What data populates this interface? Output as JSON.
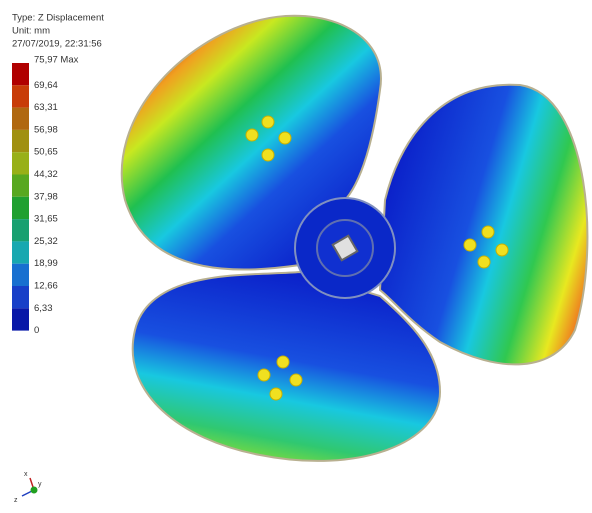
{
  "header": {
    "type": "Type: Z Displacement",
    "unit": "Unit: mm",
    "timestamp": "27/07/2019, 22:31:56"
  },
  "legend": {
    "labels": [
      "75,97 Max",
      "69,64",
      "63,31",
      "56,98",
      "50,65",
      "44,32",
      "37,98",
      "31,65",
      "25,32",
      "18,99",
      "12,66",
      "6,33",
      "0"
    ]
  },
  "triad": {
    "x": "x",
    "y": "y",
    "z": "z"
  }
}
